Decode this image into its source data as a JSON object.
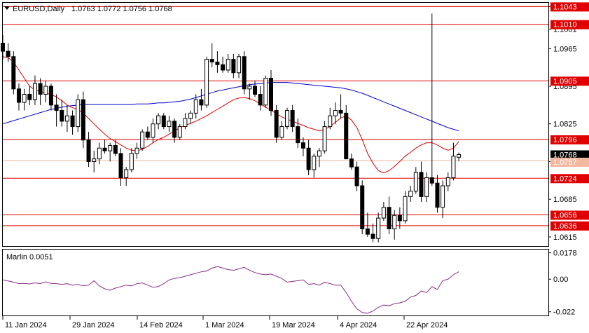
{
  "chart_data": [
    {
      "type": "candlestick",
      "title": "EURUSD,Daily",
      "ohlc_text": "1.0763 1.0772 1.0756 1.0768",
      "ylim": [
        1.0598,
        1.105
      ],
      "yticks": [
        1.1043,
        1.1001,
        1.0965,
        1.0895,
        1.0825,
        1.0755,
        1.0685,
        1.0615
      ],
      "x_labels": [
        "11 Jan 2024",
        "29 Jan 2024",
        "14 Feb 2024",
        "1 Mar 2024",
        "19 Mar 2024",
        "4 Apr 2024",
        "22 Apr 2024"
      ],
      "last_price": "1.0768",
      "price_line_label": "1.0757",
      "levels": [
        {
          "label": "1.1043",
          "value": 1.1043
        },
        {
          "label": "1.1010",
          "value": 1.101
        },
        {
          "label": "1.0905",
          "value": 1.0905
        },
        {
          "label": "1.0796",
          "value": 1.0796
        },
        {
          "label": "1.0724",
          "value": 1.0724
        },
        {
          "label": "1.0656",
          "value": 1.0656
        },
        {
          "label": "1.0636",
          "value": 1.0636
        }
      ],
      "candles": [
        [
          1.0975,
          1.099,
          1.0945,
          1.096
        ],
        [
          1.096,
          1.0975,
          1.094,
          1.095
        ],
        [
          1.095,
          1.096,
          1.088,
          1.089
        ],
        [
          1.089,
          1.09,
          1.085,
          1.0865
        ],
        [
          1.0865,
          1.089,
          1.085,
          1.088
        ],
        [
          1.088,
          1.0895,
          1.086,
          1.087
        ],
        [
          1.087,
          1.0915,
          1.086,
          1.09
        ],
        [
          1.09,
          1.091,
          1.086,
          1.088
        ],
        [
          1.088,
          1.0905,
          1.0865,
          1.0895
        ],
        [
          1.0895,
          1.09,
          1.085,
          1.086
        ],
        [
          1.086,
          1.088,
          1.082,
          1.085
        ],
        [
          1.085,
          1.087,
          1.082,
          1.083
        ],
        [
          1.083,
          1.086,
          1.081,
          1.084
        ],
        [
          1.084,
          1.085,
          1.0805,
          1.082
        ],
        [
          1.082,
          1.088,
          1.081,
          1.087
        ],
        [
          1.087,
          1.0885,
          1.078,
          1.0795
        ],
        [
          1.0795,
          1.081,
          1.0745,
          1.0755
        ],
        [
          1.0755,
          1.0775,
          1.0735,
          1.076
        ],
        [
          1.076,
          1.079,
          1.075,
          1.078
        ],
        [
          1.078,
          1.0795,
          1.077,
          1.0775
        ],
        [
          1.0775,
          1.079,
          1.0755,
          1.0785
        ],
        [
          1.0785,
          1.0795,
          1.0765,
          1.077
        ],
        [
          1.077,
          1.078,
          1.071,
          1.0725
        ],
        [
          1.0725,
          1.0745,
          1.071,
          1.074
        ],
        [
          1.074,
          1.078,
          1.0735,
          1.077
        ],
        [
          1.077,
          1.079,
          1.076,
          1.078
        ],
        [
          1.078,
          1.0815,
          1.0775,
          1.081
        ],
        [
          1.081,
          1.082,
          1.0795,
          1.08
        ],
        [
          1.08,
          1.0835,
          1.079,
          1.0825
        ],
        [
          1.0825,
          1.0845,
          1.0815,
          1.084
        ],
        [
          1.084,
          1.0845,
          1.0815,
          1.082
        ],
        [
          1.082,
          1.084,
          1.081,
          1.083
        ],
        [
          1.083,
          1.0835,
          1.079,
          1.08
        ],
        [
          1.08,
          1.0825,
          1.0795,
          1.082
        ],
        [
          1.082,
          1.0845,
          1.0815,
          1.0835
        ],
        [
          1.0835,
          1.085,
          1.0825,
          1.0845
        ],
        [
          1.0845,
          1.088,
          1.0835,
          1.087
        ],
        [
          1.087,
          1.089,
          1.085,
          1.086
        ],
        [
          1.086,
          1.095,
          1.0855,
          1.0945
        ],
        [
          1.0945,
          1.0975,
          1.093,
          1.094
        ],
        [
          1.094,
          1.096,
          1.092,
          1.0935
        ],
        [
          1.0935,
          1.095,
          1.092,
          1.0925
        ],
        [
          1.0925,
          1.0955,
          1.092,
          1.0945
        ],
        [
          1.0945,
          1.0955,
          1.091,
          1.092
        ],
        [
          1.092,
          1.0955,
          1.091,
          1.095
        ],
        [
          1.095,
          1.096,
          1.088,
          1.089
        ],
        [
          1.089,
          1.09,
          1.087,
          1.0895
        ],
        [
          1.0895,
          1.0905,
          1.0875,
          1.088
        ],
        [
          1.088,
          1.0895,
          1.085,
          1.086
        ],
        [
          1.086,
          1.0915,
          1.0855,
          1.091
        ],
        [
          1.091,
          1.0925,
          1.084,
          1.085
        ],
        [
          1.085,
          1.086,
          1.079,
          1.08
        ],
        [
          1.08,
          1.083,
          1.0795,
          1.082
        ],
        [
          1.082,
          1.0855,
          1.0815,
          1.085
        ],
        [
          1.085,
          1.086,
          1.081,
          1.082
        ],
        [
          1.082,
          1.0835,
          1.078,
          1.079
        ],
        [
          1.079,
          1.08,
          1.0765,
          1.078
        ],
        [
          1.078,
          1.0795,
          1.073,
          1.074
        ],
        [
          1.074,
          1.077,
          1.0725,
          1.0765
        ],
        [
          1.0765,
          1.078,
          1.0745,
          1.0775
        ],
        [
          1.0775,
          1.083,
          1.077,
          1.082
        ],
        [
          1.082,
          1.0855,
          1.0815,
          1.084
        ],
        [
          1.084,
          1.0865,
          1.0825,
          1.085
        ],
        [
          1.085,
          1.088,
          1.0835,
          1.0845
        ],
        [
          1.0845,
          1.086,
          1.076,
          1.076
        ],
        [
          1.076,
          1.077,
          1.074,
          1.0745
        ],
        [
          1.0745,
          1.0755,
          1.07,
          1.071
        ],
        [
          1.071,
          1.072,
          1.062,
          1.063
        ],
        [
          1.063,
          1.066,
          1.0615,
          1.062
        ],
        [
          1.062,
          1.064,
          1.0605,
          1.0612
        ],
        [
          1.0612,
          1.066,
          1.0605,
          1.065
        ],
        [
          1.065,
          1.068,
          1.0645,
          1.067
        ],
        [
          1.067,
          1.069,
          1.062,
          1.063
        ],
        [
          1.063,
          1.0665,
          1.061,
          1.0655
        ],
        [
          1.0655,
          1.067,
          1.063,
          1.0645
        ],
        [
          1.0645,
          1.07,
          1.064,
          1.069
        ],
        [
          1.069,
          1.071,
          1.068,
          1.07
        ],
        [
          1.07,
          1.0745,
          1.0695,
          1.0735
        ],
        [
          1.0735,
          1.0755,
          1.068,
          1.069
        ],
        [
          1.069,
          1.0735,
          1.068,
          1.0725
        ],
        [
          1.0725,
          1.103,
          1.071,
          1.0715
        ],
        [
          1.0715,
          1.073,
          1.066,
          1.067
        ],
        [
          1.067,
          1.072,
          1.065,
          1.071
        ],
        [
          1.071,
          1.0735,
          1.07,
          1.0725
        ],
        [
          1.0725,
          1.079,
          1.072,
          1.0765
        ],
        [
          1.0763,
          1.0772,
          1.0756,
          1.0768
        ]
      ],
      "series": [
        {
          "name": "",
          "color": "#0000cc",
          "values": [
            1.0825,
            1.0828,
            1.0831,
            1.0834,
            1.0837,
            1.084,
            1.0843,
            1.0846,
            1.0849,
            1.0852,
            1.0854,
            1.0856,
            1.0858,
            1.0859,
            1.086,
            1.0861,
            1.0861,
            1.0861,
            1.0861,
            1.0861,
            1.0861,
            1.0861,
            1.0861,
            1.0861,
            1.0861,
            1.0862,
            1.0862,
            1.0862,
            1.0863,
            1.0864,
            1.0864,
            1.0865,
            1.0866,
            1.0867,
            1.0869,
            1.0871,
            1.0874,
            1.0877,
            1.088,
            1.0883,
            1.0886,
            1.0888,
            1.089,
            1.0892,
            1.0894,
            1.0896,
            1.0898,
            1.0899,
            1.09,
            1.0901,
            1.0902,
            1.0902,
            1.0902,
            1.0902,
            1.0901,
            1.09,
            1.0899,
            1.0898,
            1.0897,
            1.0896,
            1.0895,
            1.0894,
            1.0893,
            1.0892,
            1.089,
            1.0888,
            1.0885,
            1.0882,
            1.0878,
            1.0874,
            1.087,
            1.0866,
            1.0862,
            1.0858,
            1.0854,
            1.085,
            1.0846,
            1.0842,
            1.0838,
            1.0834,
            1.083,
            1.0826,
            1.0822,
            1.0818,
            1.0815,
            1.0812
          ]
        },
        {
          "name": "",
          "color": "#dd0000",
          "values": [
            1.095,
            1.0948,
            1.094,
            1.0925,
            1.091,
            1.0895,
            1.0888,
            1.0885,
            1.0882,
            1.088,
            1.0875,
            1.0868,
            1.086,
            1.0855,
            1.0852,
            1.0845,
            1.0835,
            1.0825,
            1.0815,
            1.0806,
            1.0798,
            1.0792,
            1.0786,
            1.078,
            1.0776,
            1.0775,
            1.0778,
            1.0783,
            1.079,
            1.0796,
            1.08,
            1.0806,
            1.0812,
            1.0818,
            1.0822,
            1.0826,
            1.083,
            1.0835,
            1.084,
            1.0846,
            1.0852,
            1.0858,
            1.0864,
            1.087,
            1.0873,
            1.0874,
            1.0872,
            1.0868,
            1.0862,
            1.0856,
            1.085,
            1.0844,
            1.0838,
            1.0834,
            1.083,
            1.0826,
            1.0822,
            1.0818,
            1.0815,
            1.0812,
            1.0815,
            1.082,
            1.0828,
            1.0836,
            1.084,
            1.0832,
            1.0818,
            1.0796,
            1.077,
            1.0752,
            1.0738,
            1.0734,
            1.0738,
            1.0746,
            1.0755,
            1.0765,
            1.0772,
            1.078,
            1.0786,
            1.079,
            1.079,
            1.0786,
            1.078,
            1.0776,
            1.078,
            1.0792
          ]
        }
      ]
    },
    {
      "type": "line",
      "title": "Marlin 0.0051",
      "ylim": [
        -0.0245,
        0.02
      ],
      "yticks": [
        0.0178,
        0.0,
        -0.022
      ],
      "ytick_labels": [
        "0.0178",
        "0.00",
        "-0.022"
      ],
      "series": [
        {
          "name": "",
          "color": "#8b2c8b",
          "values": [
            -0.0005,
            -0.0012,
            -0.002,
            -0.003,
            -0.0028,
            -0.0032,
            -0.0025,
            -0.003,
            -0.0018,
            -0.0028,
            -0.003,
            -0.0035,
            -0.003,
            -0.004,
            -0.0035,
            -0.0045,
            -0.004,
            -0.001,
            -0.0045,
            -0.0065,
            -0.0075,
            -0.006,
            -0.005,
            -0.004,
            -0.0045,
            -0.003,
            -0.0025,
            -0.004,
            -0.0055,
            -0.005,
            -0.003,
            -0.0005,
            0.0005,
            0.001,
            0.002,
            0.003,
            0.004,
            0.005,
            0.0055,
            0.0075,
            0.0085,
            0.0075,
            0.0065,
            0.006,
            0.007,
            0.008,
            0.006,
            0.0045,
            0.0035,
            0.003,
            0.0035,
            0.002,
            0.0005,
            -0.002,
            -0.0015,
            -0.001,
            -0.0005,
            -0.0035,
            -0.003,
            -0.004,
            -0.002,
            -0.003,
            -0.004,
            -0.004,
            -0.009,
            -0.015,
            -0.02,
            -0.0225,
            -0.023,
            -0.0215,
            -0.019,
            -0.0175,
            -0.018,
            -0.0165,
            -0.016,
            -0.015,
            -0.012,
            -0.011,
            -0.008,
            -0.009,
            -0.005,
            -0.007,
            -0.001,
            0.0,
            0.003,
            0.0051
          ]
        }
      ]
    }
  ]
}
